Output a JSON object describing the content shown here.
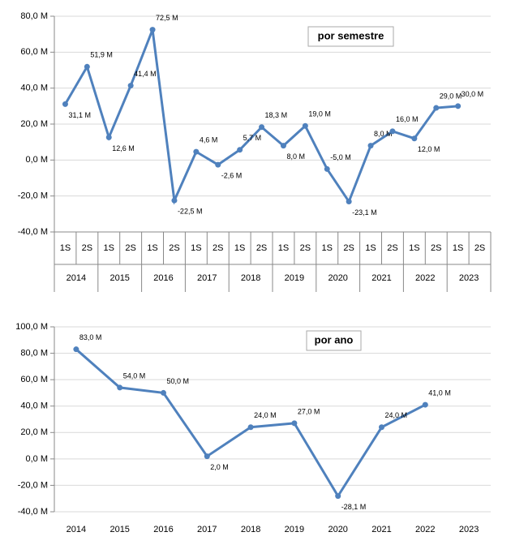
{
  "chart_data": [
    {
      "type": "line",
      "title": "por semestre",
      "categories": [
        "1S",
        "2S",
        "1S",
        "2S",
        "1S",
        "2S",
        "1S",
        "2S",
        "1S",
        "2S",
        "1S",
        "2S",
        "1S",
        "2S",
        "1S",
        "2S",
        "1S",
        "2S",
        "1S",
        "2S"
      ],
      "groups": [
        "2014",
        "2015",
        "2016",
        "2017",
        "2018",
        "2019",
        "2020",
        "2021",
        "2022",
        "2023"
      ],
      "series": [
        {
          "color": "#4f81bd",
          "values": [
            31.1,
            51.9,
            12.6,
            41.4,
            72.5,
            -22.5,
            4.6,
            -2.6,
            5.7,
            18.3,
            8.0,
            19.0,
            -5.0,
            -23.1,
            8.0,
            16.0,
            12.0,
            29.0,
            30.0,
            null
          ],
          "value_labels": [
            "31,1 M",
            "51,9 M",
            "12,6 M",
            "41,4 M",
            "72,5 M",
            "-22,5 M",
            "4,6 M",
            "-2,6 M",
            "5,7 M",
            "18,3 M",
            "8,0 M",
            "19,0 M",
            "-5,0 M",
            "-23,1 M",
            "8,0 M",
            "16,0 M",
            "12,0 M",
            "29,0 M",
            "30,0 M",
            null
          ]
        }
      ],
      "ylim": [
        -40,
        80
      ],
      "yticks": [
        {
          "value": -40,
          "label": "-40,0 M"
        },
        {
          "value": -20,
          "label": "-20,0 M"
        },
        {
          "value": 0,
          "label": "0,0 M"
        },
        {
          "value": 20,
          "label": "20,0 M"
        },
        {
          "value": 40,
          "label": "40,0 M"
        },
        {
          "value": 60,
          "label": "60,0 M"
        },
        {
          "value": 80,
          "label": "80,0 M"
        }
      ],
      "grid": true
    },
    {
      "type": "line",
      "title": "por ano",
      "categories": [
        "2014",
        "2015",
        "2016",
        "2017",
        "2018",
        "2019",
        "2020",
        "2021",
        "2022",
        "2023"
      ],
      "series": [
        {
          "color": "#4f81bd",
          "values": [
            83.0,
            54.0,
            50.0,
            2.0,
            24.0,
            27.0,
            -28.1,
            24.0,
            41.0,
            null
          ],
          "value_labels": [
            "83,0 M",
            "54,0 M",
            "50,0 M",
            "2,0 M",
            "24,0 M",
            "27,0 M",
            "-28,1 M",
            "24,0 M",
            "41,0 M",
            null
          ]
        }
      ],
      "ylim": [
        -40,
        100
      ],
      "yticks": [
        {
          "value": -40,
          "label": "-40,0 M"
        },
        {
          "value": -20,
          "label": "-20,0 M"
        },
        {
          "value": 0,
          "label": "0,0 M"
        },
        {
          "value": 20,
          "label": "20,0 M"
        },
        {
          "value": 40,
          "label": "40,0 M"
        },
        {
          "value": 60,
          "label": "60,0 M"
        },
        {
          "value": 80,
          "label": "80,0 M"
        },
        {
          "value": 100,
          "label": "100,0 M"
        }
      ],
      "grid": true
    }
  ]
}
